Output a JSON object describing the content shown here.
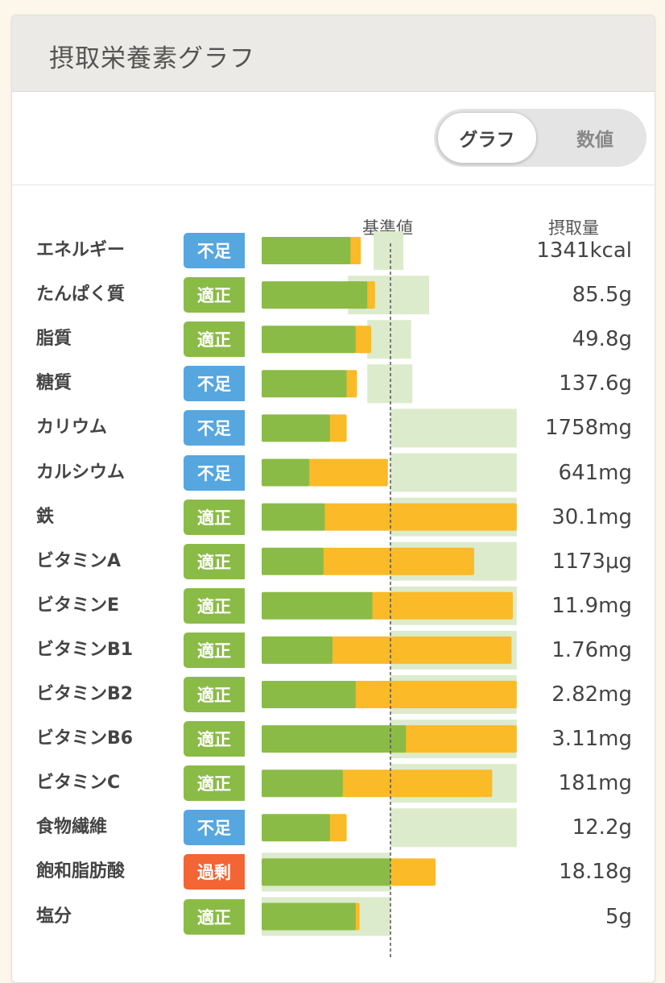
{
  "title": "摂取栄養素グラフ",
  "toggle": {
    "active": "グラフ",
    "inactive": "数値"
  },
  "columns": {
    "reference": "基準値",
    "intake": "摂取量"
  },
  "colors": {
    "green": "#8bbb47",
    "orange": "#fbba27",
    "range": "#dcebcc",
    "badge_low": "#56a6e0",
    "badge_ok": "#8bbb47",
    "badge_high": "#f36534"
  },
  "chart_data": {
    "type": "bar",
    "xlim_percent": [
      0,
      300
    ],
    "reference_percent": 100,
    "rows": [
      {
        "label": "エネルギー",
        "status": "不足",
        "status_type": "low",
        "value": "1341kcal",
        "green": 69,
        "orange": 8,
        "range": [
          87,
          110
        ]
      },
      {
        "label": "たんぱく質",
        "status": "適正",
        "status_type": "ok",
        "value": "85.5g",
        "green": 82,
        "orange": 6,
        "range": [
          67,
          130
        ]
      },
      {
        "label": "脂質",
        "status": "適正",
        "status_type": "ok",
        "value": "49.8g",
        "green": 73,
        "orange": 12,
        "range": [
          82,
          116
        ]
      },
      {
        "label": "糖質",
        "status": "不足",
        "status_type": "low",
        "value": "137.6g",
        "green": 66,
        "orange": 8,
        "range": [
          82,
          117
        ]
      },
      {
        "label": "カリウム",
        "status": "不足",
        "status_type": "low",
        "value": "1758mg",
        "green": 53,
        "orange": 13,
        "range": [
          100,
          198
        ]
      },
      {
        "label": "カルシウム",
        "status": "不足",
        "status_type": "low",
        "value": "641mg",
        "green": 37,
        "orange": 61,
        "range": [
          100,
          198
        ]
      },
      {
        "label": "鉄",
        "status": "適正",
        "status_type": "ok",
        "value": "30.1mg",
        "green": 49,
        "orange": 149,
        "range": [
          100,
          198
        ]
      },
      {
        "label": "ビタミンA",
        "status": "適正",
        "status_type": "ok",
        "value": "1173μg",
        "green": 48,
        "orange": 117,
        "range": [
          100,
          198
        ]
      },
      {
        "label": "ビタミンE",
        "status": "適正",
        "status_type": "ok",
        "value": "11.9mg",
        "green": 86,
        "orange": 109,
        "range": [
          100,
          198
        ]
      },
      {
        "label": "ビタミンB1",
        "status": "適正",
        "status_type": "ok",
        "value": "1.76mg",
        "green": 55,
        "orange": 139,
        "range": [
          100,
          198
        ]
      },
      {
        "label": "ビタミンB2",
        "status": "適正",
        "status_type": "ok",
        "value": "2.82mg",
        "green": 73,
        "orange": 125,
        "range": [
          100,
          198
        ]
      },
      {
        "label": "ビタミンB6",
        "status": "適正",
        "status_type": "ok",
        "value": "3.11mg",
        "green": 112,
        "orange": 86,
        "range": [
          100,
          198
        ]
      },
      {
        "label": "ビタミンC",
        "status": "適正",
        "status_type": "ok",
        "value": "181mg",
        "green": 63,
        "orange": 116,
        "range": [
          100,
          198
        ]
      },
      {
        "label": "食物繊維",
        "status": "不足",
        "status_type": "low",
        "value": "12.2g",
        "green": 53,
        "orange": 13,
        "range": [
          100,
          198
        ]
      },
      {
        "label": "飽和脂肪酸",
        "status": "過剰",
        "status_type": "high",
        "value": "18.18g",
        "green": 100,
        "orange": 35,
        "range": [
          0,
          100
        ]
      },
      {
        "label": "塩分",
        "status": "適正",
        "status_type": "ok",
        "value": "5g",
        "green": 73,
        "orange": 3,
        "range": [
          0,
          100
        ]
      }
    ]
  }
}
